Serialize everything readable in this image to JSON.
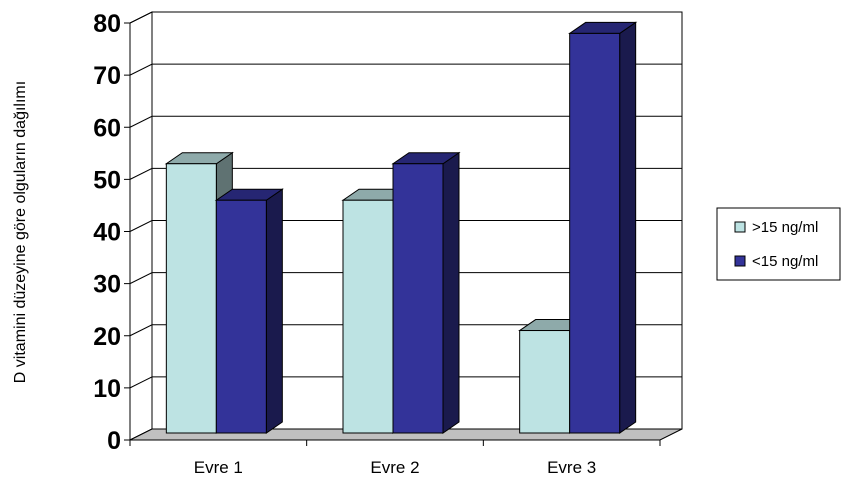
{
  "chart_data": {
    "type": "bar",
    "style": "3d-clustered",
    "title": "",
    "xlabel": "",
    "ylabel": "D vitamini düzeyine göre olguların dağılımı",
    "categories": [
      "Evre 1",
      "Evre 2",
      "Evre 3"
    ],
    "series": [
      {
        "name": ">15 ng/ml",
        "values": [
          53,
          46,
          21
        ],
        "color": "#BDE3E3"
      },
      {
        "name": "<15 ng/ml",
        "values": [
          46,
          53,
          78
        ],
        "color": "#333399"
      }
    ],
    "ylim": [
      0,
      80
    ],
    "yticks": [
      "0",
      "10",
      "20",
      "30",
      "40",
      "50",
      "60",
      "70",
      "80"
    ],
    "grid": true,
    "legend": "right"
  }
}
